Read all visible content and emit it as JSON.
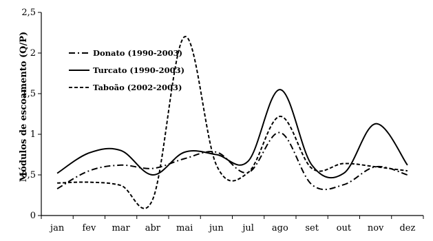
{
  "chart_data": {
    "type": "line",
    "title": "",
    "xlabel": "",
    "ylabel": "Módulos de escoamento (Q/P)",
    "categories": [
      "jan",
      "fev",
      "mar",
      "abr",
      "mai",
      "jun",
      "jul",
      "ago",
      "set",
      "out",
      "nov",
      "dez"
    ],
    "ylim": [
      0,
      2.5
    ],
    "yticks": [
      0,
      0.5,
      1,
      1.5,
      2,
      2.5
    ],
    "ytick_labels": [
      "0",
      "0,5",
      "1",
      "1,5",
      "2",
      "2,5"
    ],
    "grid": false,
    "legend_position": "top-left",
    "series": [
      {
        "name": "Donato (1990-2003)",
        "dash": "dash-dot",
        "values": [
          0.33,
          0.55,
          0.62,
          0.58,
          0.7,
          0.78,
          0.53,
          1.02,
          0.38,
          0.38,
          0.6,
          0.5
        ]
      },
      {
        "name": "Turcato (1990-2003)",
        "dash": "solid",
        "values": [
          0.52,
          0.77,
          0.8,
          0.5,
          0.78,
          0.75,
          0.67,
          1.55,
          0.62,
          0.52,
          1.13,
          0.62
        ]
      },
      {
        "name": "Taboão (2002-2003)",
        "dash": "dashed",
        "values": [
          0.4,
          0.41,
          0.37,
          0.2,
          2.2,
          0.62,
          0.53,
          1.22,
          0.58,
          0.64,
          0.6,
          0.55
        ]
      }
    ]
  }
}
